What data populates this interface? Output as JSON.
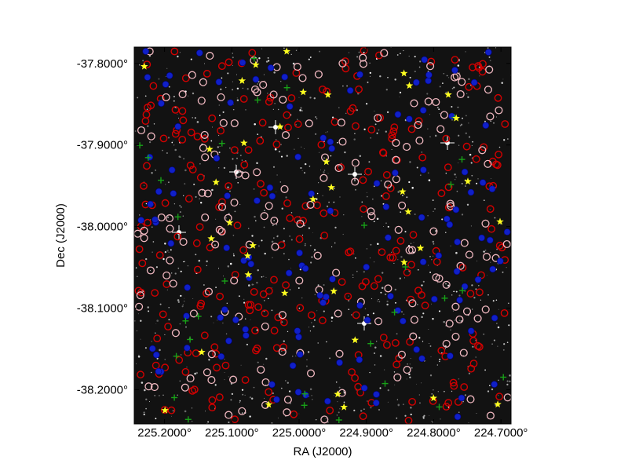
{
  "axes": {
    "xlabel": "RA (J2000)",
    "ylabel": "Dec (J2000)",
    "x_ticks": [
      {
        "label": "225.2000°",
        "value": 225.2
      },
      {
        "label": "225.1000°",
        "value": 225.1
      },
      {
        "label": "225.0000°",
        "value": 225.0
      },
      {
        "label": "224.9000°",
        "value": 224.9
      },
      {
        "label": "224.8000°",
        "value": 224.8
      },
      {
        "label": "224.7000°",
        "value": 224.7
      }
    ],
    "y_ticks": [
      {
        "label": "-37.8000°",
        "value": -37.8
      },
      {
        "label": "-37.9000°",
        "value": -37.9
      },
      {
        "label": "-38.0000°",
        "value": -38.0
      },
      {
        "label": "-38.1000°",
        "value": -38.1
      },
      {
        "label": "-38.2000°",
        "value": -38.2
      }
    ],
    "xlim": [
      225.245,
      224.685
    ],
    "ylim": [
      -38.242,
      -37.78
    ]
  },
  "colors": {
    "image_background": "#121212",
    "marker_red": "#d40000",
    "marker_pink": "#f0b8c0",
    "marker_blue": "#1020c8",
    "marker_yellow": "#ffff20",
    "marker_green": "#18a018"
  },
  "marker_legend": [
    {
      "shape": "circle",
      "color": "marker_red"
    },
    {
      "shape": "circle",
      "color": "marker_pink"
    },
    {
      "shape": "filled-circle",
      "color": "marker_blue"
    },
    {
      "shape": "star",
      "color": "marker_yellow"
    },
    {
      "shape": "cross",
      "color": "marker_green"
    }
  ]
}
